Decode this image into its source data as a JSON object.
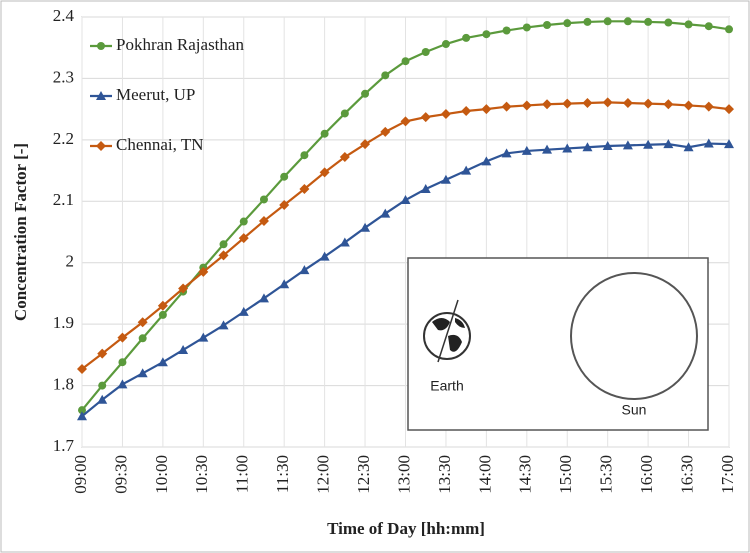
{
  "chart_data": {
    "type": "line",
    "x_label": "Time of Day [hh:mm]",
    "y_label": "Concentration Factor [-]",
    "categories": [
      "09:00",
      null,
      "09:30",
      null,
      "10:00",
      null,
      "10:30",
      null,
      "11:00",
      null,
      "11:30",
      null,
      "12:00",
      null,
      "12:30",
      null,
      "13:00",
      null,
      "13:30",
      null,
      "14:00",
      null,
      "14:30",
      null,
      "15:00",
      null,
      "15:30",
      null,
      "16:00",
      null,
      "16:30",
      null,
      "17:00"
    ],
    "series": [
      {
        "name": "Pokhran Rajasthan",
        "color": "#5b9a3c",
        "marker": "circle",
        "values": [
          1.76,
          1.8,
          1.838,
          1.877,
          1.915,
          1.953,
          1.992,
          2.03,
          2.067,
          2.103,
          2.14,
          2.175,
          2.21,
          2.243,
          2.275,
          2.305,
          2.328,
          2.343,
          2.356,
          2.366,
          2.372,
          2.378,
          2.383,
          2.387,
          2.39,
          2.392,
          2.393,
          2.393,
          2.392,
          2.391,
          2.388,
          2.385,
          2.38
        ]
      },
      {
        "name": "Meerut, UP",
        "color": "#2f5597",
        "marker": "triangle",
        "values": [
          1.75,
          1.777,
          1.802,
          1.82,
          1.838,
          1.858,
          1.878,
          1.898,
          1.92,
          1.942,
          1.965,
          1.988,
          2.01,
          2.033,
          2.057,
          2.08,
          2.102,
          2.12,
          2.135,
          2.15,
          2.165,
          2.178,
          2.182,
          2.184,
          2.186,
          2.188,
          2.19,
          2.191,
          2.192,
          2.193,
          2.188,
          2.194,
          2.193
        ]
      },
      {
        "name": "Chennai, TN",
        "color": "#c55a11",
        "marker": "diamond",
        "values": [
          1.827,
          1.852,
          1.878,
          1.903,
          1.93,
          1.958,
          1.985,
          2.012,
          2.04,
          2.068,
          2.094,
          2.12,
          2.147,
          2.172,
          2.193,
          2.213,
          2.23,
          2.237,
          2.242,
          2.247,
          2.25,
          2.254,
          2.256,
          2.258,
          2.259,
          2.26,
          2.261,
          2.26,
          2.259,
          2.258,
          2.256,
          2.254,
          2.25
        ]
      }
    ],
    "ylim": [
      1.7,
      2.4
    ],
    "yticks": [
      1.7,
      1.8,
      1.9,
      2,
      2.1,
      2.2,
      2.3,
      2.4
    ],
    "grid": true,
    "legend": "upper-left",
    "inset_labels": [
      "Earth",
      "Sun"
    ]
  }
}
